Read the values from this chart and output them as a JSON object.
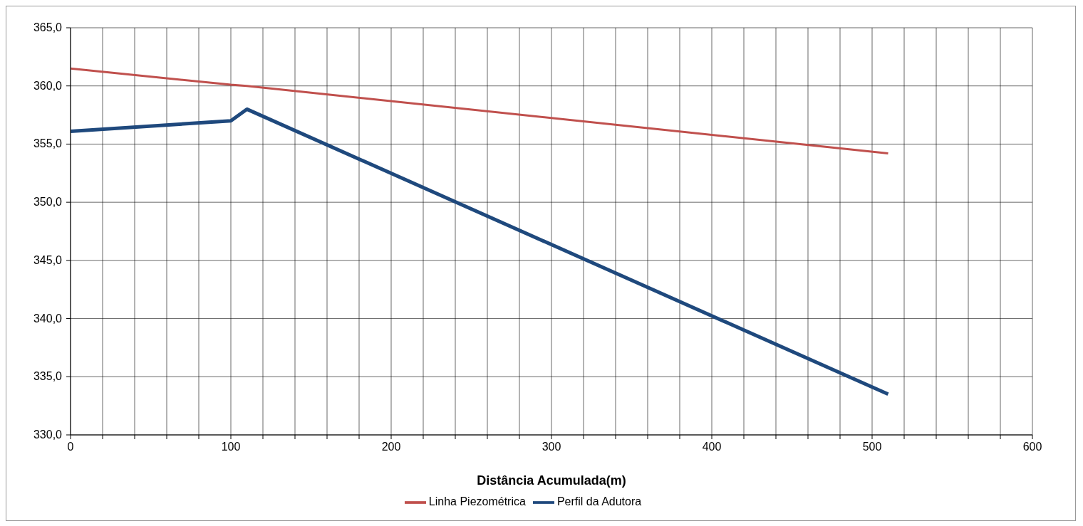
{
  "chart_data": {
    "type": "line",
    "xlabel": "Distância Acumulada(m)",
    "series": [
      {
        "name": "Perfil da Adutora",
        "color": "#1f497d",
        "x": [
          0,
          100,
          110,
          510
        ],
        "values": [
          356.1,
          357.0,
          358.0,
          333.5
        ]
      },
      {
        "name": "Linha Piezométrica",
        "color": "#c0504d",
        "x": [
          0,
          100,
          110,
          510
        ],
        "values": [
          361.5,
          360.1,
          360.0,
          354.2
        ]
      }
    ],
    "xlim": [
      0,
      600
    ],
    "xticks": [
      0,
      {
        "value": 20,
        "label": null
      },
      {
        "value": 40,
        "label": null
      },
      {
        "value": 60,
        "label": null
      },
      {
        "value": 80,
        "label": null
      },
      100,
      {
        "value": 120,
        "label": null
      },
      {
        "value": 140,
        "label": null
      },
      {
        "value": 160,
        "label": null
      },
      {
        "value": 180,
        "label": null
      },
      200,
      {
        "value": 220,
        "label": null
      },
      {
        "value": 240,
        "label": null
      },
      {
        "value": 260,
        "label": null
      },
      {
        "value": 280,
        "label": null
      },
      300,
      {
        "value": 320,
        "label": null
      },
      {
        "value": 340,
        "label": null
      },
      {
        "value": 360,
        "label": null
      },
      {
        "value": 380,
        "label": null
      },
      400,
      {
        "value": 420,
        "label": null
      },
      {
        "value": 440,
        "label": null
      },
      {
        "value": 460,
        "label": null
      },
      {
        "value": 480,
        "label": null
      },
      500,
      {
        "value": 520,
        "label": null
      },
      {
        "value": 540,
        "label": null
      },
      {
        "value": 560,
        "label": null
      },
      {
        "value": 580,
        "label": null
      },
      600
    ],
    "ylim": [
      330,
      365
    ],
    "yticks": [
      {
        "value": 330,
        "label": "330,0"
      },
      {
        "value": 335,
        "label": "335,0"
      },
      {
        "value": 340,
        "label": "340,0"
      },
      {
        "value": 345,
        "label": "345,0"
      },
      {
        "value": 350,
        "label": "350,0"
      },
      {
        "value": 355,
        "label": "355,0"
      },
      {
        "value": 360,
        "label": "360,0"
      },
      {
        "value": 365,
        "label": "365,0"
      }
    ],
    "grid": true,
    "legend": "bottom",
    "marker": "none",
    "line_style": "solid"
  }
}
